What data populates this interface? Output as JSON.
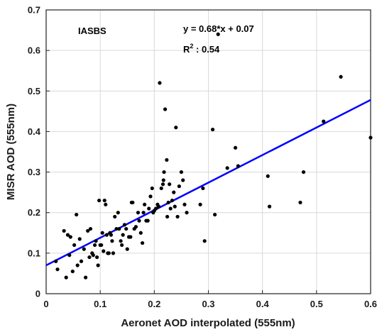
{
  "chart_data": {
    "type": "scatter",
    "title": "",
    "xlabel": "Aeronet AOD interpolated (555nm)",
    "ylabel": "MISR AOD (555nm)",
    "xlim": [
      0,
      0.6
    ],
    "ylim": [
      0,
      0.7
    ],
    "xticks": [
      "0",
      "0.1",
      "0.2",
      "0.3",
      "0.4",
      "0.5",
      "0.6"
    ],
    "yticks": [
      "0",
      "0.1",
      "0.2",
      "0.3",
      "0.4",
      "0.5",
      "0.6",
      "0.7"
    ],
    "grid": true,
    "station_label": "IASBS",
    "equation": "y = 0.68*x + 0.07",
    "r2_prefix": "R",
    "r2_sup": "2",
    "r2_value": " : 0.54",
    "colors": {
      "points": "#000000",
      "fit_line": "#0000ff",
      "grid": "#d9d9d9"
    },
    "fit_line": {
      "slope": 0.68,
      "intercept": 0.07
    },
    "series": [
      {
        "x": [
          0.018,
          0.021,
          0.033,
          0.037,
          0.04,
          0.043,
          0.045,
          0.049,
          0.052,
          0.056,
          0.058,
          0.062,
          0.065,
          0.07,
          0.073,
          0.077,
          0.08,
          0.082,
          0.085,
          0.087,
          0.09,
          0.092,
          0.094,
          0.096,
          0.098,
          0.1,
          0.102,
          0.104,
          0.106,
          0.108,
          0.11,
          0.112,
          0.114,
          0.116,
          0.118,
          0.12,
          0.122,
          0.124,
          0.127,
          0.13,
          0.133,
          0.135,
          0.138,
          0.14,
          0.142,
          0.145,
          0.148,
          0.15,
          0.153,
          0.156,
          0.158,
          0.16,
          0.163,
          0.166,
          0.17,
          0.172,
          0.175,
          0.178,
          0.18,
          0.182,
          0.185,
          0.188,
          0.19,
          0.193,
          0.196,
          0.198,
          0.2,
          0.203,
          0.206,
          0.208,
          0.21,
          0.213,
          0.216,
          0.218,
          0.22,
          0.223,
          0.226,
          0.228,
          0.23,
          0.233,
          0.236,
          0.238,
          0.24,
          0.243,
          0.246,
          0.25,
          0.253,
          0.256,
          0.26,
          0.285,
          0.29,
          0.293,
          0.308,
          0.312,
          0.318,
          0.335,
          0.35,
          0.355,
          0.41,
          0.413,
          0.47,
          0.476,
          0.513,
          0.545,
          0.6,
          0.217,
          0.224
        ],
        "y": [
          0.08,
          0.06,
          0.155,
          0.04,
          0.145,
          0.095,
          0.14,
          0.055,
          0.12,
          0.195,
          0.07,
          0.135,
          0.08,
          0.11,
          0.04,
          0.155,
          0.09,
          0.16,
          0.1,
          0.095,
          0.12,
          0.13,
          0.09,
          0.07,
          0.23,
          0.12,
          0.12,
          0.15,
          0.105,
          0.23,
          0.22,
          0.145,
          0.1,
          0.1,
          0.15,
          0.145,
          0.13,
          0.1,
          0.19,
          0.16,
          0.2,
          0.16,
          0.13,
          0.12,
          0.145,
          0.17,
          0.16,
          0.11,
          0.14,
          0.14,
          0.225,
          0.225,
          0.16,
          0.165,
          0.2,
          0.18,
          0.15,
          0.125,
          0.2,
          0.22,
          0.18,
          0.18,
          0.21,
          0.24,
          0.26,
          0.2,
          0.205,
          0.21,
          0.22,
          0.215,
          0.52,
          0.26,
          0.27,
          0.3,
          0.455,
          0.33,
          0.225,
          0.27,
          0.21,
          0.23,
          0.25,
          0.215,
          0.41,
          0.19,
          0.265,
          0.3,
          0.28,
          0.22,
          0.2,
          0.22,
          0.26,
          0.13,
          0.405,
          0.195,
          0.64,
          0.31,
          0.36,
          0.315,
          0.29,
          0.215,
          0.225,
          0.3,
          0.425,
          0.535,
          0.385,
          0.28,
          0.19
        ]
      }
    ]
  }
}
